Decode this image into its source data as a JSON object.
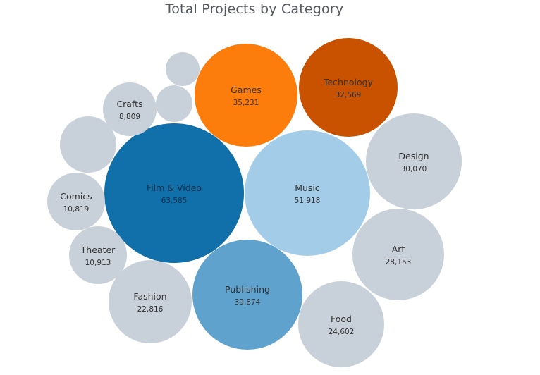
{
  "chart_data": {
    "type": "bubble",
    "title": "Total Projects by Category",
    "colors": {
      "Film & Video": "#1170aa",
      "Music": "#a3cce9",
      "Publishing": "#5fa2ce",
      "Games": "#fc7d0b",
      "Technology": "#c85200",
      "other": "#c8d0d9"
    },
    "bubbles": [
      {
        "category": "Film & Video",
        "value": 63585,
        "value_label": "63,585"
      },
      {
        "category": "Music",
        "value": 51918,
        "value_label": "51,918"
      },
      {
        "category": "Publishing",
        "value": 39874,
        "value_label": "39,874"
      },
      {
        "category": "Games",
        "value": 35231,
        "value_label": "35,231"
      },
      {
        "category": "Technology",
        "value": 32569,
        "value_label": "32,569"
      },
      {
        "category": "Design",
        "value": 30070,
        "value_label": "30,070"
      },
      {
        "category": "Art",
        "value": 28153,
        "value_label": "28,153"
      },
      {
        "category": "Food",
        "value": 24602,
        "value_label": "24,602"
      },
      {
        "category": "Fashion",
        "value": 22816,
        "value_label": "22,816"
      },
      {
        "category": "Theater",
        "value": 10913,
        "value_label": "10,913"
      },
      {
        "category": "Comics",
        "value": 10819,
        "value_label": "10,819"
      },
      {
        "category": "Crafts",
        "value": 8809,
        "value_label": "8,809"
      },
      {
        "category": "",
        "value_label": ""
      },
      {
        "category": "",
        "value_label": ""
      },
      {
        "category": "",
        "value_label": ""
      }
    ]
  }
}
